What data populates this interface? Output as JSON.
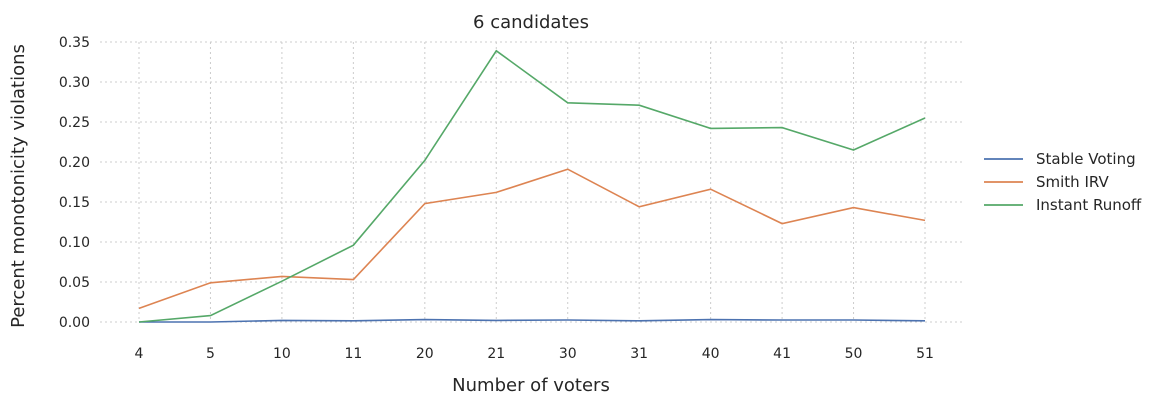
{
  "chart_data": {
    "type": "line",
    "title": "6 candidates",
    "xlabel": "Number of voters",
    "ylabel": "Percent monotonicity violations",
    "categories": [
      "4",
      "5",
      "10",
      "11",
      "20",
      "21",
      "30",
      "31",
      "40",
      "41",
      "50",
      "51"
    ],
    "ylim": [
      0,
      0.35
    ],
    "yticks": [
      "0.00",
      "0.05",
      "0.10",
      "0.15",
      "0.20",
      "0.25",
      "0.30",
      "0.35"
    ],
    "ytick_values": [
      0,
      0.05,
      0.1,
      0.15,
      0.2,
      0.25,
      0.3,
      0.35
    ],
    "grid": true,
    "legend_position": "right",
    "series": [
      {
        "name": "Stable Voting",
        "color": "#4c72b0",
        "values": [
          0.0,
          0.0,
          0.002,
          0.0015,
          0.003,
          0.002,
          0.0025,
          0.0015,
          0.003,
          0.0025,
          0.0025,
          0.0015
        ]
      },
      {
        "name": "Smith IRV",
        "color": "#dd8452",
        "values": [
          0.017,
          0.049,
          0.057,
          0.053,
          0.148,
          0.162,
          0.191,
          0.144,
          0.166,
          0.123,
          0.143,
          0.127
        ]
      },
      {
        "name": "Instant Runoff",
        "color": "#55a868",
        "values": [
          0.0,
          0.008,
          0.051,
          0.096,
          0.202,
          0.339,
          0.274,
          0.271,
          0.242,
          0.243,
          0.215,
          0.255
        ]
      }
    ]
  }
}
